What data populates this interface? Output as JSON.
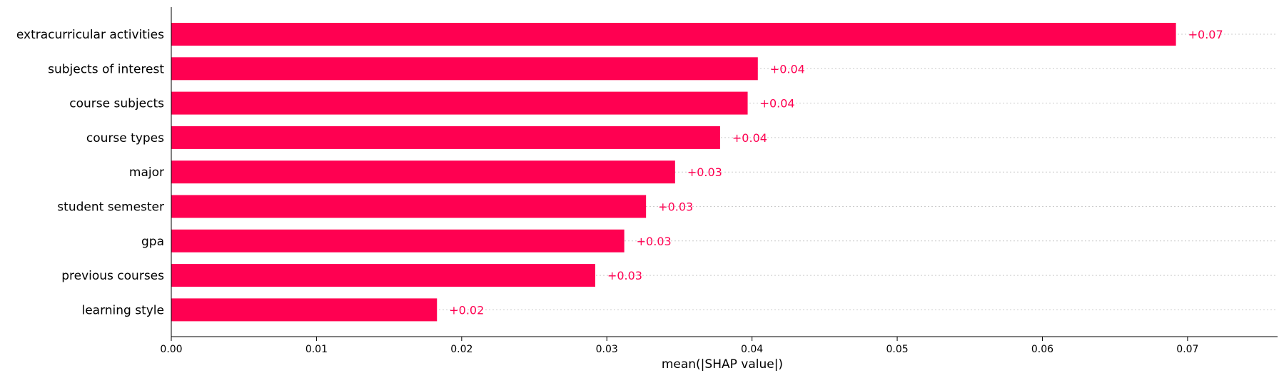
{
  "chart_data": {
    "type": "bar",
    "orientation": "horizontal",
    "categories": [
      "extracurricular activities",
      "subjects of interest",
      "course subjects",
      "course types",
      "major",
      "student semester",
      "gpa",
      "previous courses",
      "learning style"
    ],
    "values": [
      0.0692,
      0.0404,
      0.0397,
      0.0378,
      0.0347,
      0.0327,
      0.0312,
      0.0292,
      0.0183
    ],
    "value_labels": [
      "+0.07",
      "+0.04",
      "+0.04",
      "+0.04",
      "+0.03",
      "+0.03",
      "+0.03",
      "+0.03",
      "+0.02"
    ],
    "xlabel": "mean(|SHAP value|)",
    "ylabel": "",
    "title": "",
    "xlim": [
      0.0,
      0.0762
    ],
    "xticks": [
      0.0,
      0.01,
      0.02,
      0.03,
      0.04,
      0.05,
      0.06,
      0.07
    ],
    "xtick_labels": [
      "0.00",
      "0.01",
      "0.02",
      "0.03",
      "0.04",
      "0.05",
      "0.06",
      "0.07"
    ],
    "grid": false,
    "row_guides": "dotted",
    "colors": {
      "bar": "#ff0051",
      "value_label": "#ff0051",
      "axis": "#000000",
      "guide": "#cccccc"
    }
  }
}
